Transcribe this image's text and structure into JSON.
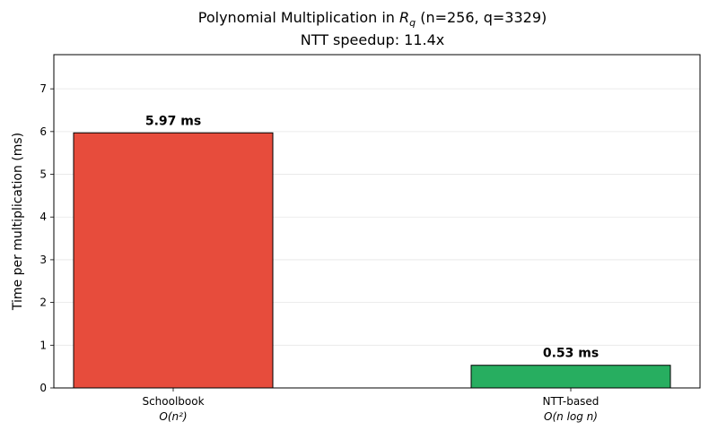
{
  "chart_data": {
    "type": "bar",
    "title": "Polynomial Multiplication in R_q (n=256, q=3329)",
    "title_parts": {
      "prefix": "Polynomial Multiplication in ",
      "math_base": "R",
      "math_sub": "q",
      "suffix": " (n=256, q=3329)"
    },
    "subtitle": "NTT speedup: 11.4x",
    "ylabel": "Time per multiplication (ms)",
    "xlabel": "",
    "ylim": [
      0,
      7.8
    ],
    "yticks": [
      0,
      1,
      2,
      3,
      4,
      5,
      6,
      7
    ],
    "grid": "y",
    "categories": [
      "Schoolbook",
      "NTT-based"
    ],
    "category_complexity": [
      "O(n²)",
      "O(n log n)"
    ],
    "values": [
      5.97,
      0.53
    ],
    "value_labels": [
      "5.97 ms",
      "0.53 ms"
    ],
    "colors": [
      "#e74c3c",
      "#27ae60"
    ],
    "edge_color": "#000000"
  }
}
